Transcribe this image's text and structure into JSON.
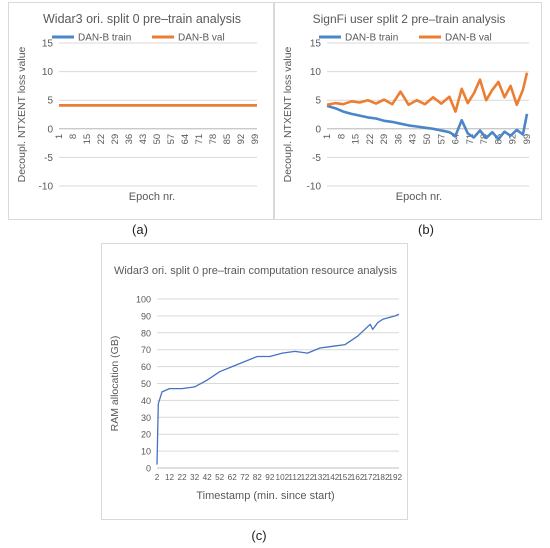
{
  "captions": {
    "a": "(a)",
    "b": "(b)",
    "c": "(c)"
  },
  "chart_data": [
    {
      "id": "a",
      "type": "line",
      "title": "Widar3 ori. split 0 pre–train analysis",
      "xlabel": "Epoch nr.",
      "ylabel": "Decoupl. NTXENT loss value",
      "ylim": [
        -10,
        15
      ],
      "yticks": [
        -10,
        -5,
        0,
        5,
        10,
        15
      ],
      "xlim": [
        1,
        100
      ],
      "xticks": [
        1,
        8,
        15,
        22,
        29,
        36,
        43,
        50,
        57,
        64,
        71,
        78,
        85,
        92,
        99
      ],
      "grid": true,
      "legend": "top",
      "series": [
        {
          "name": "DAN-B train",
          "color": "#4a86c8",
          "x": [
            1,
            100
          ],
          "y": [
            4.1,
            4.1
          ]
        },
        {
          "name": "DAN-B val",
          "color": "#ed7d31",
          "x": [
            1,
            100
          ],
          "y": [
            4.1,
            4.1
          ]
        }
      ]
    },
    {
      "id": "b",
      "type": "line",
      "title": "SignFi user split 2 pre–train analysis",
      "xlabel": "Epoch nr.",
      "ylabel": "Decoupl. NTXENT loss value",
      "ylim": [
        -10,
        15
      ],
      "yticks": [
        -10,
        -5,
        0,
        5,
        10,
        15
      ],
      "xlim": [
        1,
        100
      ],
      "xticks": [
        1,
        8,
        15,
        22,
        29,
        36,
        43,
        50,
        57,
        64,
        71,
        78,
        85,
        92,
        99
      ],
      "grid": true,
      "legend": "top",
      "series": [
        {
          "name": "DAN-B train",
          "color": "#4a86c8",
          "x": [
            1,
            5,
            9,
            13,
            17,
            21,
            25,
            29,
            33,
            37,
            41,
            45,
            49,
            53,
            57,
            61,
            64,
            67,
            70,
            73,
            76,
            79,
            82,
            85,
            88,
            91,
            94,
            97,
            99
          ],
          "y": [
            4.0,
            3.6,
            3.0,
            2.6,
            2.3,
            2.0,
            1.8,
            1.4,
            1.2,
            0.9,
            0.6,
            0.4,
            0.2,
            0.0,
            -0.3,
            -0.6,
            -1.2,
            1.5,
            -0.8,
            -1.5,
            -0.3,
            -1.6,
            -0.6,
            -1.8,
            -0.5,
            -1.2,
            -0.2,
            -1.0,
            2.6
          ]
        },
        {
          "name": "DAN-B val",
          "color": "#ed7d31",
          "x": [
            1,
            5,
            9,
            13,
            17,
            21,
            25,
            29,
            33,
            37,
            41,
            45,
            49,
            53,
            57,
            61,
            64,
            67,
            70,
            73,
            76,
            79,
            82,
            85,
            88,
            91,
            94,
            97,
            99
          ],
          "y": [
            4.2,
            4.5,
            4.3,
            4.8,
            4.6,
            5.0,
            4.4,
            5.1,
            4.3,
            6.5,
            4.2,
            5.0,
            4.3,
            5.5,
            4.4,
            5.6,
            3.0,
            7.0,
            4.5,
            6.2,
            8.6,
            5.0,
            6.8,
            8.2,
            5.5,
            7.5,
            4.2,
            6.8,
            9.8
          ]
        }
      ]
    },
    {
      "id": "c",
      "type": "line",
      "title": "Widar3 ori. split 0 pre–train computation resource analysis",
      "xlabel": "Timestamp (min. since start)",
      "ylabel": "RAM allocation (GB)",
      "ylim": [
        0,
        100
      ],
      "yticks": [
        0,
        10,
        20,
        30,
        40,
        50,
        60,
        70,
        80,
        90,
        100
      ],
      "xlim": [
        2,
        195
      ],
      "xticks": [
        2,
        12,
        22,
        32,
        42,
        52,
        62,
        72,
        82,
        92,
        102,
        112,
        122,
        132,
        142,
        152,
        162,
        172,
        182,
        192
      ],
      "grid": true,
      "series": [
        {
          "name": "",
          "color": "#4472c4",
          "x": [
            2,
            3,
            6,
            12,
            22,
            32,
            42,
            52,
            62,
            72,
            82,
            92,
            102,
            112,
            122,
            132,
            142,
            152,
            162,
            172,
            174,
            178,
            182,
            192,
            195
          ],
          "y": [
            2,
            38,
            45,
            47,
            47,
            48,
            52,
            57,
            60,
            63,
            66,
            66,
            68,
            69,
            68,
            71,
            72,
            73,
            78,
            85,
            82,
            86,
            88,
            90,
            91
          ]
        }
      ]
    }
  ]
}
